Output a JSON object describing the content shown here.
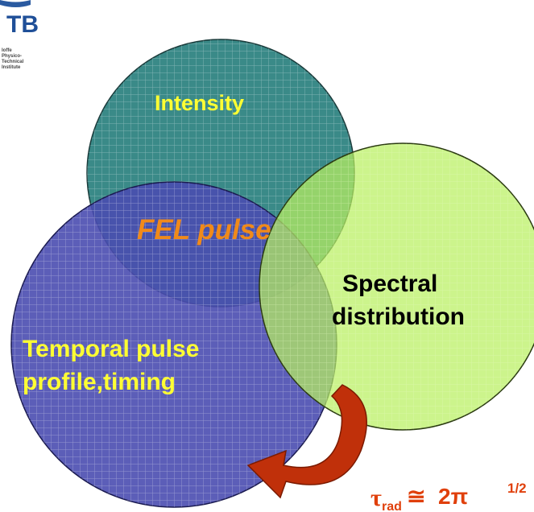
{
  "logo": {
    "initials": "TB",
    "institute": [
      "Ioffe",
      "Physico-",
      "Technical",
      "Institute"
    ]
  },
  "circles": [
    {
      "lines": [
        "Intensity"
      ]
    },
    {
      "lines": [
        "Temporal pulse",
        "profile,timing"
      ]
    },
    {
      "lines": [
        "Spectral",
        "distribution"
      ]
    }
  ],
  "center_label": "FEL pulse",
  "formula": {
    "symbol": "τ",
    "subscript": "rad",
    "relation": "≅  2π",
    "superscript": "1/2"
  }
}
